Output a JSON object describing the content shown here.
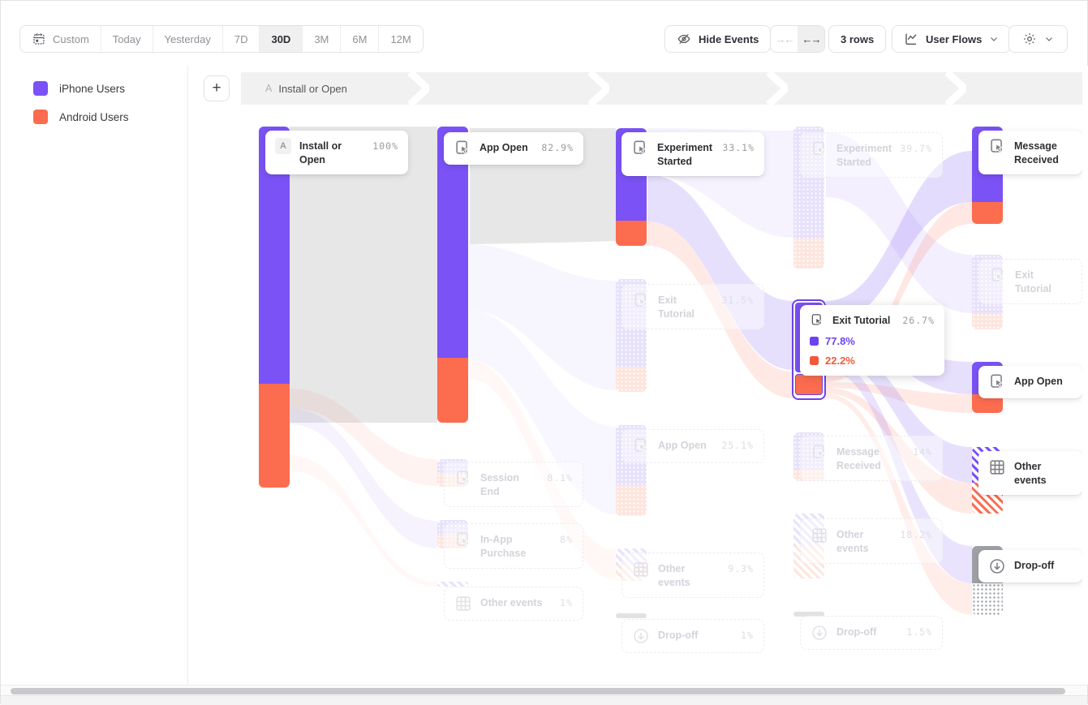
{
  "toolbar": {
    "date_ranges": [
      "Custom",
      "Today",
      "Yesterday",
      "7D",
      "30D",
      "3M",
      "6M",
      "12M"
    ],
    "selected_range": "30D",
    "hide_events_label": "Hide Events",
    "collapse_glyph": "→←",
    "expand_glyph": "←→",
    "rows_label": "3 rows",
    "view_selector_label": "User Flows"
  },
  "legend": {
    "items": [
      {
        "label": "iPhone Users",
        "color": "#7a52f5"
      },
      {
        "label": "Android Users",
        "color": "#fc6c4f"
      }
    ]
  },
  "breadcrumb": {
    "add_button": "+",
    "step_badge": "A",
    "step_label": "Install or Open"
  },
  "icons": {
    "calendar-icon": "calendar glyph",
    "eye-off-icon": "hidden-eye glyph",
    "collapse-columns-icon": "→←",
    "expand-columns-icon": "←→",
    "user-flows-icon": "flow-chart glyph",
    "gear-icon": "⚙",
    "chevron-down-icon": "⌄",
    "plus-icon": "+",
    "event-click-icon": "screen-tap glyph",
    "other-events-grid-icon": "grid glyph",
    "drop-off-icon": "↓ in circle"
  },
  "colors": {
    "iphone": "#7a52f5",
    "android": "#fc6c4f",
    "iphone_faded": "#e7e1fb",
    "android_faded": "#fde5de",
    "selected_flow_gray": "#e7e7e8",
    "dropoff_gray": "#9fa1a6",
    "hover_outline": "#6d43f0"
  },
  "chart_data": {
    "type": "sankey",
    "title": "User Flows",
    "start_event": "Install or Open",
    "legend_position": "top-left",
    "series": [
      {
        "name": "iPhone Users",
        "color": "#7a52f5"
      },
      {
        "name": "Android Users",
        "color": "#fc6c4f"
      }
    ],
    "steps": [
      {
        "nodes": [
          {
            "badge": "A",
            "label": "Install or Open",
            "pct": "100%",
            "state": "active",
            "kind": "start"
          }
        ]
      },
      {
        "nodes": [
          {
            "label": "App Open",
            "pct": "82.9%",
            "state": "active",
            "kind": "event"
          },
          {
            "label": "Session End",
            "pct": "8.1%",
            "state": "faded",
            "kind": "event"
          },
          {
            "label": "In-App Purchase",
            "pct": "8%",
            "state": "faded",
            "kind": "event"
          },
          {
            "label": "Other events",
            "pct": "1%",
            "state": "faded",
            "kind": "other"
          }
        ]
      },
      {
        "nodes": [
          {
            "label": "Experiment Started",
            "pct": "33.1%",
            "state": "active",
            "kind": "event"
          },
          {
            "label": "Exit Tutorial",
            "pct": "31.5%",
            "state": "faded",
            "kind": "event"
          },
          {
            "label": "App Open",
            "pct": "25.1%",
            "state": "faded",
            "kind": "event"
          },
          {
            "label": "Other events",
            "pct": "9.3%",
            "state": "faded",
            "kind": "other"
          },
          {
            "label": "Drop-off",
            "pct": "1%",
            "state": "faded",
            "kind": "dropoff"
          }
        ]
      },
      {
        "nodes": [
          {
            "label": "Experiment Started",
            "pct": "39.7%",
            "state": "faded",
            "kind": "event"
          },
          {
            "label": "Exit Tutorial",
            "pct": "26.7%",
            "state": "hovered",
            "kind": "event",
            "breakdown": {
              "iphone": "77.8%",
              "android": "22.2%"
            }
          },
          {
            "label": "Message Received",
            "pct": "14%",
            "state": "faded",
            "kind": "event"
          },
          {
            "label": "Other events",
            "pct": "18.2%",
            "state": "faded",
            "kind": "other"
          },
          {
            "label": "Drop-off",
            "pct": "1.5%",
            "state": "faded",
            "kind": "dropoff"
          }
        ]
      },
      {
        "nodes": [
          {
            "label": "Message Received",
            "state": "active",
            "kind": "event"
          },
          {
            "label": "Exit Tutorial",
            "state": "faded",
            "kind": "event"
          },
          {
            "label": "App Open",
            "state": "active",
            "kind": "event"
          },
          {
            "label": "Other events",
            "state": "active",
            "kind": "other"
          },
          {
            "label": "Drop-off",
            "state": "active",
            "kind": "dropoff"
          }
        ]
      }
    ],
    "highlighted_path": [
      "Install or Open",
      "App Open",
      "Experiment Started",
      "Exit Tutorial"
    ]
  }
}
